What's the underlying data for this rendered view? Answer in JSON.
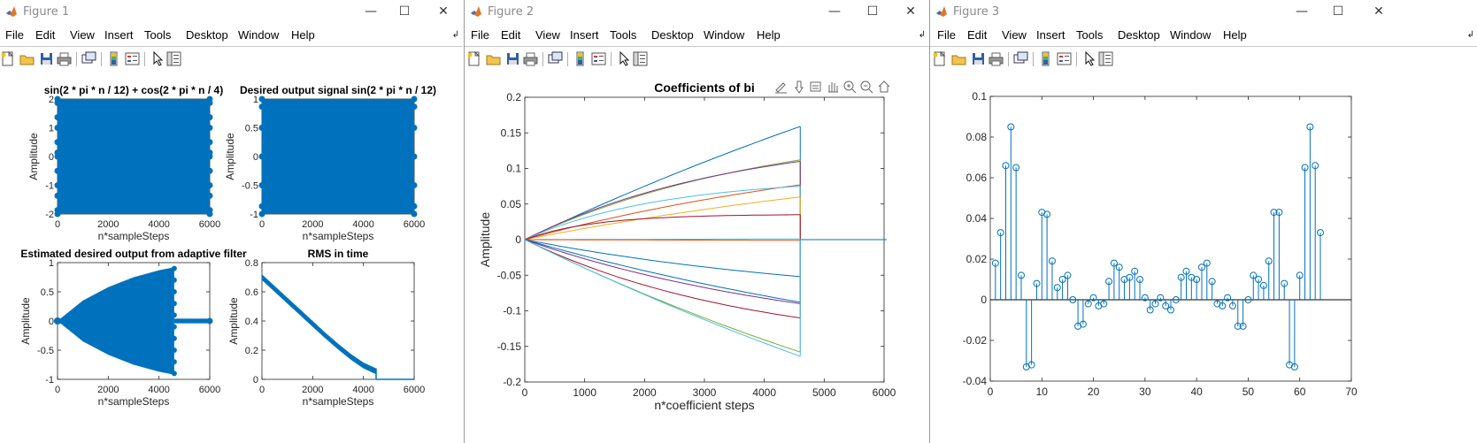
{
  "menus": [
    "File",
    "Edit",
    "View",
    "Insert",
    "Tools",
    "Desktop",
    "Window",
    "Help"
  ],
  "window_controls": {
    "minimize": "—",
    "maximize": "☐",
    "close": "✕"
  },
  "menu_overflow": "↲",
  "colors": {
    "series_blue": "#0072BD",
    "axes": "#262626",
    "title_text": "#8a8a8a"
  },
  "figure1": {
    "title": "Figure 1",
    "plots": [
      {
        "title": "sin(2 * pi * n / 12) + cos(2 * pi * n / 4)",
        "xlabel": "n*sampleSteps",
        "ylabel": "Amplitude",
        "xlim": [
          0,
          6000
        ],
        "ylim": [
          -2,
          2
        ],
        "xticks": [
          "0",
          "2000",
          "4000",
          "6000"
        ],
        "yticks": [
          "2",
          "1",
          "0",
          "-1",
          "-2"
        ],
        "type": "scatter",
        "x_extent": [
          0,
          6000
        ],
        "y_levels": [
          2,
          1.866,
          1.366,
          1,
          0.5,
          0.134,
          0,
          -0.5,
          -1,
          -1.366,
          -1.866,
          -2
        ]
      },
      {
        "title": "Desired output signal sin(2 * pi * n / 12)",
        "xlabel": "n*sampleSteps",
        "ylabel": "Amplitude",
        "xlim": [
          0,
          6000
        ],
        "ylim": [
          -1,
          1
        ],
        "xticks": [
          "0",
          "2000",
          "4000",
          "6000"
        ],
        "yticks": [
          "1",
          "0.5",
          "0",
          "-0.5",
          "-1"
        ],
        "type": "scatter",
        "x_extent": [
          0,
          6000
        ],
        "y_levels": [
          1,
          0.866,
          0.5,
          0,
          -0.5,
          -0.866,
          -1
        ]
      },
      {
        "title": "Estimated desired output from adaptive filter",
        "xlabel": "n*sampleSteps",
        "ylabel": "Amplitude",
        "xlim": [
          0,
          6000
        ],
        "ylim": [
          -1,
          1
        ],
        "xticks": [
          "0",
          "2000",
          "4000",
          "6000"
        ],
        "yticks": [
          "1",
          "0.5",
          "0",
          "-0.5",
          "-1"
        ],
        "type": "scatter",
        "envelope": {
          "x": [
            0,
            1000,
            2000,
            3000,
            4000,
            4600
          ],
          "upper": [
            0,
            0.35,
            0.58,
            0.75,
            0.87,
            0.92
          ]
        },
        "cutoff": 4600,
        "tail": [
          4600,
          6000
        ]
      },
      {
        "title": "RMS in time",
        "xlabel": "n*sampleSteps",
        "ylabel": "Amplitude",
        "xlim": [
          0,
          6000
        ],
        "ylim": [
          0,
          0.8
        ],
        "xticks": [
          "0",
          "2000",
          "4000",
          "6000"
        ],
        "yticks": [
          "0.8",
          "0.6",
          "0.4",
          "0.2",
          "0"
        ],
        "type": "line",
        "x": [
          0,
          500,
          1000,
          1500,
          2000,
          2500,
          3000,
          3500,
          4000,
          4500,
          4500,
          6000
        ],
        "y": [
          0.72,
          0.64,
          0.56,
          0.48,
          0.4,
          0.32,
          0.245,
          0.175,
          0.115,
          0.075,
          0,
          0
        ],
        "band": 0.04
      }
    ]
  },
  "figure2": {
    "title": "Figure 2",
    "plot": {
      "title": "Coefficients of bi",
      "xlabel": "n*coefficient steps",
      "ylabel": "Amplitude",
      "xlim": [
        0,
        6000
      ],
      "ylim": [
        -0.2,
        0.2
      ],
      "xticks": [
        "0",
        "1000",
        "2000",
        "3000",
        "4000",
        "5000",
        "6000"
      ],
      "yticks": [
        "0.2",
        "0.15",
        "0.1",
        "0.05",
        "0",
        "-0.05",
        "-0.1",
        "-0.15",
        "-0.2"
      ],
      "type": "line",
      "cutoff": 4600,
      "series": [
        {
          "color": "#0072BD",
          "final": 0.159,
          "curv": 0.15
        },
        {
          "color": "#77AC30",
          "final": 0.112,
          "curv": 0.55
        },
        {
          "color": "#7E2F8E",
          "final": 0.11,
          "curv": 0.65
        },
        {
          "color": "#D95319",
          "final": 0.077,
          "curv": 0.35
        },
        {
          "color": "#4DBEEE",
          "final": 0.075,
          "curv": 1.0
        },
        {
          "color": "#EDB120",
          "final": 0.06,
          "curv": 0.25
        },
        {
          "color": "#A2142F",
          "final": 0.035,
          "curv": 2.0
        },
        {
          "color": "#4DBEEE",
          "final": 0.001,
          "curv": 0.0
        },
        {
          "color": "#D95319",
          "final": -0.001,
          "curv": 0.0
        },
        {
          "color": "#0072BD",
          "final": -0.052,
          "curv": 0.4
        },
        {
          "color": "#0072BD",
          "final": -0.088,
          "curv": 0.25
        },
        {
          "color": "#7E2F8E",
          "final": -0.09,
          "curv": 0.45
        },
        {
          "color": "#A2142F",
          "final": -0.11,
          "curv": 0.6
        },
        {
          "color": "#77AC30",
          "final": -0.158,
          "curv": 0.2
        },
        {
          "color": "#4DBEEE",
          "final": -0.164,
          "curv": 0.15
        }
      ],
      "tail_end": 6000
    }
  },
  "figure3": {
    "title": "Figure 3",
    "plot": {
      "type": "stem",
      "xlim": [
        0,
        70
      ],
      "ylim": [
        -0.04,
        0.1
      ],
      "xticks": [
        "0",
        "10",
        "20",
        "30",
        "40",
        "50",
        "60",
        "70"
      ],
      "yticks": [
        "0.1",
        "0.08",
        "0.06",
        "0.04",
        "0.02",
        "0",
        "-0.02",
        "-0.04"
      ],
      "x": [
        1,
        2,
        3,
        4,
        5,
        6,
        7,
        8,
        9,
        10,
        11,
        12,
        13,
        14,
        15,
        16,
        17,
        18,
        19,
        20,
        21,
        22,
        23,
        24,
        25,
        26,
        27,
        28,
        29,
        30,
        31,
        32,
        33,
        34,
        35,
        36,
        37,
        38,
        39,
        40,
        41,
        42,
        43,
        44,
        45,
        46,
        47,
        48,
        49,
        50,
        51,
        52,
        53,
        54,
        55,
        56,
        57,
        58,
        59,
        60,
        61,
        62,
        63,
        64
      ],
      "y": [
        0.018,
        0.033,
        0.066,
        0.085,
        0.065,
        0.012,
        -0.033,
        -0.032,
        0.008,
        0.043,
        0.042,
        0.019,
        0.006,
        0.01,
        0.012,
        0.0,
        -0.013,
        -0.012,
        -0.002,
        0.001,
        -0.003,
        -0.002,
        0.009,
        0.018,
        0.016,
        0.01,
        0.011,
        0.014,
        0.01,
        0.001,
        -0.005,
        -0.002,
        0.001,
        -0.003,
        -0.005,
        0.0,
        0.011,
        0.014,
        0.011,
        0.01,
        0.016,
        0.018,
        0.009,
        -0.002,
        -0.003,
        0.001,
        -0.003,
        -0.013,
        -0.013,
        0.0,
        0.012,
        0.01,
        0.007,
        0.019,
        0.043,
        0.043,
        0.008,
        -0.032,
        -0.033,
        0.012,
        0.065,
        0.085,
        0.066,
        0.033
      ]
    }
  },
  "axes_toolbar": {
    "icons": [
      "export-icon",
      "brush-icon",
      "datatip-icon",
      "pan-icon",
      "zoom-in-icon",
      "zoom-out-icon",
      "home-icon"
    ]
  }
}
